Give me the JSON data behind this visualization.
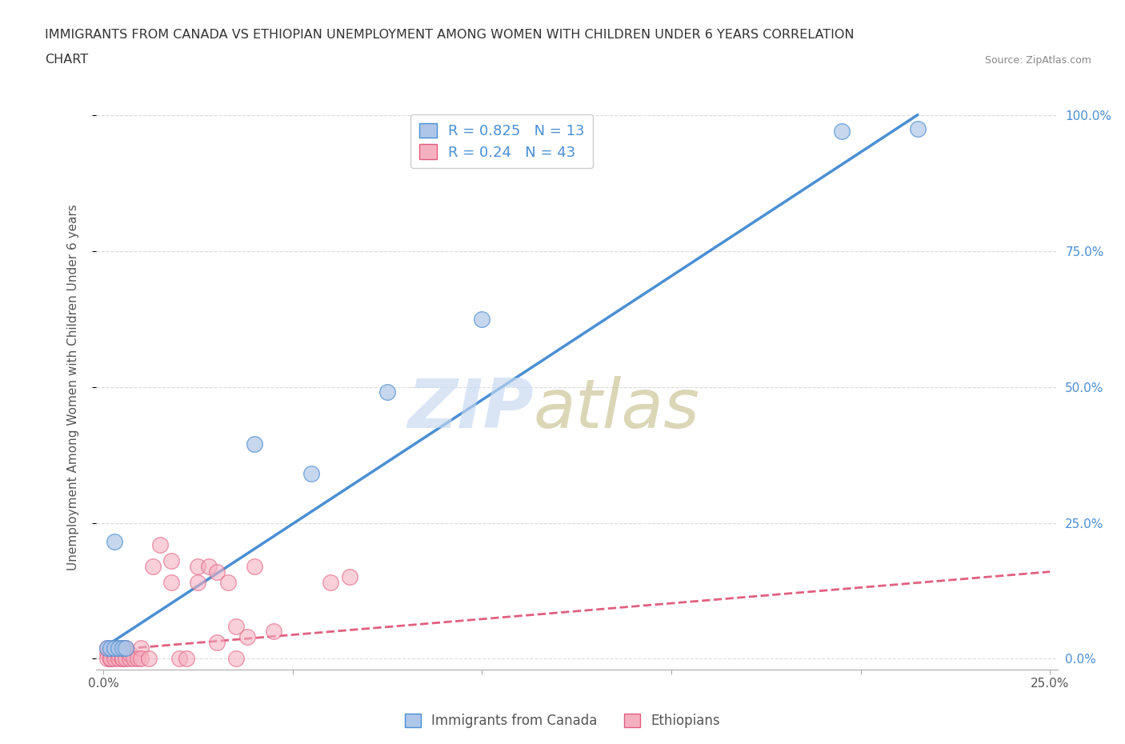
{
  "title_line1": "IMMIGRANTS FROM CANADA VS ETHIOPIAN UNEMPLOYMENT AMONG WOMEN WITH CHILDREN UNDER 6 YEARS CORRELATION",
  "title_line2": "CHART",
  "source": "Source: ZipAtlas.com",
  "ylabel": "Unemployment Among Women with Children Under 6 years",
  "r_canada": 0.825,
  "n_canada": 13,
  "r_ethiopia": 0.24,
  "n_ethiopia": 43,
  "canada_color": "#aec6e8",
  "canada_line_color": "#4a8fd4",
  "ethiopia_color": "#f5b0c0",
  "ethiopia_line_color": "#e06080",
  "background_color": "#ffffff",
  "canada_scatter_x": [
    0.001,
    0.002,
    0.003,
    0.003,
    0.004,
    0.005,
    0.006,
    0.04,
    0.055,
    0.075,
    0.1,
    0.195,
    0.215
  ],
  "canada_scatter_y": [
    0.02,
    0.02,
    0.02,
    0.215,
    0.02,
    0.02,
    0.02,
    0.395,
    0.34,
    0.49,
    0.625,
    0.97,
    0.975
  ],
  "ethiopia_scatter_x": [
    0.001,
    0.001,
    0.001,
    0.002,
    0.002,
    0.002,
    0.002,
    0.003,
    0.003,
    0.003,
    0.004,
    0.004,
    0.005,
    0.005,
    0.005,
    0.006,
    0.006,
    0.007,
    0.007,
    0.008,
    0.009,
    0.01,
    0.01,
    0.012,
    0.013,
    0.015,
    0.018,
    0.018,
    0.02,
    0.022,
    0.025,
    0.025,
    0.028,
    0.03,
    0.03,
    0.033,
    0.035,
    0.035,
    0.038,
    0.04,
    0.045,
    0.06,
    0.065
  ],
  "ethiopia_scatter_y": [
    0.01,
    0.02,
    0.0,
    0.0,
    0.01,
    0.0,
    0.0,
    0.02,
    0.01,
    0.0,
    0.0,
    0.01,
    0.0,
    0.02,
    0.0,
    0.0,
    0.02,
    0.0,
    0.01,
    0.0,
    0.0,
    0.02,
    0.0,
    0.0,
    0.17,
    0.21,
    0.18,
    0.14,
    0.0,
    0.0,
    0.17,
    0.14,
    0.17,
    0.03,
    0.16,
    0.14,
    0.06,
    0.0,
    0.04,
    0.17,
    0.05,
    0.14,
    0.15
  ],
  "canada_line_x0": 0.0,
  "canada_line_y0": 0.02,
  "canada_line_x1": 0.215,
  "canada_line_y1": 1.0,
  "ethiopia_line_x0": 0.0,
  "ethiopia_line_y0": 0.015,
  "ethiopia_line_x1": 0.25,
  "ethiopia_line_y1": 0.16,
  "ylim": [
    -0.02,
    1.02
  ],
  "xlim": [
    -0.002,
    0.252
  ],
  "yticks": [
    0.0,
    0.25,
    0.5,
    0.75,
    1.0
  ],
  "ytick_labels_left": [
    "",
    "",
    "",
    "",
    ""
  ],
  "ytick_labels_right": [
    "0.0%",
    "25.0%",
    "50.0%",
    "75.0%",
    "100.0%"
  ],
  "xticks": [
    0.0,
    0.05,
    0.1,
    0.15,
    0.2,
    0.25
  ],
  "xtick_labels": [
    "0.0%",
    "",
    "",
    "",
    "",
    "25.0%"
  ],
  "grid_color": "#cccccc",
  "title_fontsize": 11.5,
  "axis_label_fontsize": 11,
  "tick_fontsize": 11,
  "legend_fontsize": 13,
  "source_fontsize": 9
}
